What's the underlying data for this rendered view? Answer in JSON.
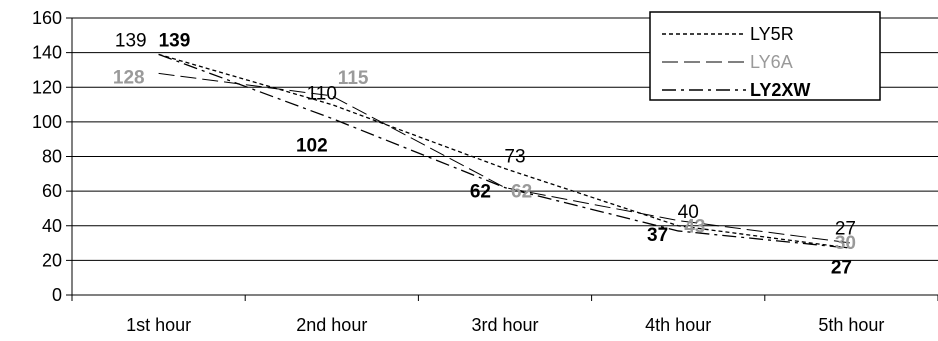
{
  "chart_data": {
    "type": "line",
    "categories": [
      "1st hour",
      "2nd hour",
      "3rd hour",
      "4th hour",
      "5th hour"
    ],
    "ylim": [
      0,
      160
    ],
    "yticks": [
      0,
      20,
      40,
      60,
      80,
      100,
      120,
      140,
      160
    ],
    "grid": true,
    "legend_position": "top-right",
    "series": [
      {
        "name": "LY5R",
        "values": [
          139,
          110,
          73,
          40,
          27
        ],
        "color": "#000000",
        "line_style": "short-dash",
        "label_color": "#000000",
        "label_weight": "normal"
      },
      {
        "name": "LY6A",
        "values": [
          128,
          115,
          62,
          43,
          30
        ],
        "color": "#000000",
        "line_style": "long-dash",
        "label_color": "#9a9a9a",
        "label_weight": "bold"
      },
      {
        "name": "LY2XW",
        "values": [
          139,
          102,
          62,
          37,
          27
        ],
        "color": "#000000",
        "line_style": "dash-dot",
        "label_color": "#000000",
        "label_weight": "bold"
      }
    ]
  }
}
